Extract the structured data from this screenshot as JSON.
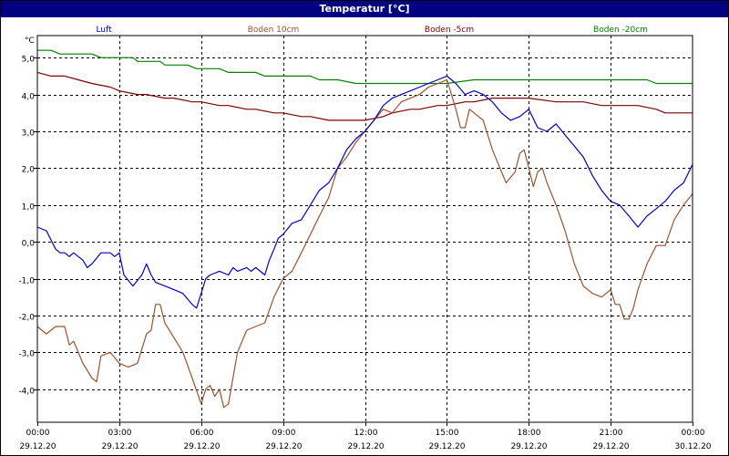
{
  "chart_data": {
    "type": "line",
    "title": "Temperatur [°C]",
    "ylabel": "°C",
    "xlabel": "",
    "ylim": [
      -4.9,
      5.6
    ],
    "grid": true,
    "legend_placement": "top",
    "yticks": [
      "5,0",
      "4,0",
      "3,0",
      "2,0",
      "1,0",
      "0,0",
      "-1,0",
      "-2,0",
      "-3,0",
      "-4,0"
    ],
    "ytick_values": [
      5,
      4,
      3,
      2,
      1,
      0,
      -1,
      -2,
      -3,
      -4
    ],
    "xtick_times": [
      "00:00",
      "03:00",
      "06:00",
      "09:00",
      "12:00",
      "15:00",
      "18:00",
      "21:00",
      "00:00"
    ],
    "xtick_dates": [
      "29.12.20",
      "29.12.20",
      "29.12.20",
      "29.12.20",
      "29.12.20",
      "29.12.20",
      "29.12.20",
      "29.12.20",
      "30.12.20"
    ],
    "xtick_hours": [
      0,
      3,
      6,
      9,
      12,
      15,
      18,
      21,
      24
    ],
    "series": [
      {
        "name": "Luft",
        "color": "#0000cc",
        "points": [
          [
            0,
            0.4
          ],
          [
            0.33,
            0.3
          ],
          [
            0.67,
            -0.2
          ],
          [
            0.83,
            -0.3
          ],
          [
            1.0,
            -0.3
          ],
          [
            1.17,
            -0.4
          ],
          [
            1.33,
            -0.3
          ],
          [
            1.5,
            -0.4
          ],
          [
            1.67,
            -0.5
          ],
          [
            1.83,
            -0.7
          ],
          [
            2.0,
            -0.6
          ],
          [
            2.33,
            -0.3
          ],
          [
            2.67,
            -0.3
          ],
          [
            2.83,
            -0.4
          ],
          [
            3.0,
            -0.3
          ],
          [
            3.17,
            -0.9
          ],
          [
            3.5,
            -1.2
          ],
          [
            3.83,
            -0.9
          ],
          [
            4.0,
            -0.6
          ],
          [
            4.17,
            -0.9
          ],
          [
            4.33,
            -1.1
          ],
          [
            4.67,
            -1.2
          ],
          [
            5.0,
            -1.3
          ],
          [
            5.33,
            -1.4
          ],
          [
            5.67,
            -1.7
          ],
          [
            5.83,
            -1.8
          ],
          [
            6.0,
            -1.4
          ],
          [
            6.17,
            -1.0
          ],
          [
            6.33,
            -0.9
          ],
          [
            6.67,
            -0.8
          ],
          [
            7.0,
            -0.9
          ],
          [
            7.17,
            -0.7
          ],
          [
            7.33,
            -0.8
          ],
          [
            7.67,
            -0.7
          ],
          [
            7.83,
            -0.8
          ],
          [
            8.0,
            -0.7
          ],
          [
            8.33,
            -0.9
          ],
          [
            8.5,
            -0.5
          ],
          [
            8.67,
            -0.2
          ],
          [
            8.83,
            0.1
          ],
          [
            9.0,
            0.2
          ],
          [
            9.33,
            0.5
          ],
          [
            9.67,
            0.6
          ],
          [
            10.0,
            1.0
          ],
          [
            10.33,
            1.4
          ],
          [
            10.67,
            1.6
          ],
          [
            11.0,
            2.0
          ],
          [
            11.33,
            2.5
          ],
          [
            11.67,
            2.8
          ],
          [
            12.0,
            3.0
          ],
          [
            12.33,
            3.3
          ],
          [
            12.67,
            3.7
          ],
          [
            13.0,
            3.9
          ],
          [
            13.33,
            4.0
          ],
          [
            13.67,
            4.1
          ],
          [
            14.0,
            4.2
          ],
          [
            14.33,
            4.3
          ],
          [
            14.67,
            4.4
          ],
          [
            15.0,
            4.5
          ],
          [
            15.33,
            4.3
          ],
          [
            15.67,
            4.0
          ],
          [
            16.0,
            4.1
          ],
          [
            16.33,
            4.0
          ],
          [
            16.67,
            3.8
          ],
          [
            17.0,
            3.5
          ],
          [
            17.33,
            3.3
          ],
          [
            17.67,
            3.4
          ],
          [
            18.0,
            3.6
          ],
          [
            18.33,
            3.1
          ],
          [
            18.67,
            3.0
          ],
          [
            19.0,
            3.2
          ],
          [
            19.33,
            2.9
          ],
          [
            19.67,
            2.6
          ],
          [
            20.0,
            2.3
          ],
          [
            20.33,
            1.8
          ],
          [
            20.67,
            1.4
          ],
          [
            21.0,
            1.1
          ],
          [
            21.33,
            1.0
          ],
          [
            21.67,
            0.7
          ],
          [
            22.0,
            0.4
          ],
          [
            22.33,
            0.7
          ],
          [
            22.67,
            0.9
          ],
          [
            23.0,
            1.1
          ],
          [
            23.33,
            1.4
          ],
          [
            23.67,
            1.6
          ],
          [
            24.0,
            2.1
          ]
        ]
      },
      {
        "name": "Boden 10cm",
        "color": "#a0522d",
        "points": [
          [
            0,
            -2.3
          ],
          [
            0.33,
            -2.5
          ],
          [
            0.67,
            -2.3
          ],
          [
            1.0,
            -2.3
          ],
          [
            1.17,
            -2.8
          ],
          [
            1.33,
            -2.7
          ],
          [
            1.67,
            -3.3
          ],
          [
            2.0,
            -3.7
          ],
          [
            2.17,
            -3.8
          ],
          [
            2.33,
            -3.1
          ],
          [
            2.67,
            -3.0
          ],
          [
            3.0,
            -3.3
          ],
          [
            3.33,
            -3.4
          ],
          [
            3.67,
            -3.3
          ],
          [
            4.0,
            -2.5
          ],
          [
            4.17,
            -2.4
          ],
          [
            4.33,
            -1.7
          ],
          [
            4.5,
            -1.7
          ],
          [
            4.67,
            -2.2
          ],
          [
            5.0,
            -2.6
          ],
          [
            5.33,
            -3.0
          ],
          [
            5.67,
            -3.7
          ],
          [
            6.0,
            -4.4
          ],
          [
            6.17,
            -4.0
          ],
          [
            6.33,
            -3.9
          ],
          [
            6.5,
            -4.2
          ],
          [
            6.67,
            -4.0
          ],
          [
            6.83,
            -4.5
          ],
          [
            7.0,
            -4.4
          ],
          [
            7.33,
            -3.0
          ],
          [
            7.67,
            -2.4
          ],
          [
            8.0,
            -2.3
          ],
          [
            8.33,
            -2.2
          ],
          [
            8.67,
            -1.5
          ],
          [
            9.0,
            -1.0
          ],
          [
            9.33,
            -0.8
          ],
          [
            9.67,
            -0.3
          ],
          [
            10.0,
            0.2
          ],
          [
            10.33,
            0.7
          ],
          [
            10.67,
            1.2
          ],
          [
            11.0,
            2.0
          ],
          [
            11.33,
            2.3
          ],
          [
            11.67,
            2.7
          ],
          [
            12.0,
            3.0
          ],
          [
            12.33,
            3.3
          ],
          [
            12.67,
            3.6
          ],
          [
            13.0,
            3.5
          ],
          [
            13.33,
            3.8
          ],
          [
            13.67,
            3.9
          ],
          [
            14.0,
            4.0
          ],
          [
            14.33,
            4.2
          ],
          [
            14.67,
            4.3
          ],
          [
            15.0,
            4.4
          ],
          [
            15.17,
            4.0
          ],
          [
            15.33,
            3.6
          ],
          [
            15.5,
            3.1
          ],
          [
            15.67,
            3.1
          ],
          [
            15.83,
            3.6
          ],
          [
            16.0,
            3.5
          ],
          [
            16.33,
            3.3
          ],
          [
            16.67,
            2.5
          ],
          [
            17.0,
            1.9
          ],
          [
            17.17,
            1.6
          ],
          [
            17.5,
            1.9
          ],
          [
            17.67,
            2.4
          ],
          [
            17.83,
            2.5
          ],
          [
            18.0,
            2.0
          ],
          [
            18.17,
            1.5
          ],
          [
            18.33,
            1.9
          ],
          [
            18.5,
            2.0
          ],
          [
            18.67,
            1.6
          ],
          [
            19.0,
            1.0
          ],
          [
            19.33,
            0.3
          ],
          [
            19.67,
            -0.6
          ],
          [
            20.0,
            -1.2
          ],
          [
            20.33,
            -1.4
          ],
          [
            20.67,
            -1.5
          ],
          [
            21.0,
            -1.3
          ],
          [
            21.17,
            -1.7
          ],
          [
            21.33,
            -1.7
          ],
          [
            21.5,
            -2.1
          ],
          [
            21.67,
            -2.1
          ],
          [
            21.83,
            -1.8
          ],
          [
            22.0,
            -1.3
          ],
          [
            22.33,
            -0.6
          ],
          [
            22.67,
            -0.1
          ],
          [
            23.0,
            -0.1
          ],
          [
            23.33,
            0.6
          ],
          [
            23.67,
            1.0
          ],
          [
            24.0,
            1.3
          ]
        ]
      },
      {
        "name": "Boden -5cm",
        "color": "#800000",
        "points": [
          [
            0,
            4.6
          ],
          [
            0.5,
            4.5
          ],
          [
            1.0,
            4.5
          ],
          [
            1.5,
            4.4
          ],
          [
            2.0,
            4.3
          ],
          [
            2.67,
            4.2
          ],
          [
            3.0,
            4.1
          ],
          [
            3.67,
            4.0
          ],
          [
            4.0,
            4.0
          ],
          [
            4.67,
            3.9
          ],
          [
            5.0,
            3.9
          ],
          [
            5.67,
            3.8
          ],
          [
            6.0,
            3.8
          ],
          [
            6.67,
            3.7
          ],
          [
            7.0,
            3.7
          ],
          [
            7.67,
            3.6
          ],
          [
            8.0,
            3.6
          ],
          [
            8.67,
            3.5
          ],
          [
            9.0,
            3.5
          ],
          [
            9.67,
            3.4
          ],
          [
            10.0,
            3.4
          ],
          [
            10.67,
            3.3
          ],
          [
            11.0,
            3.3
          ],
          [
            11.67,
            3.3
          ],
          [
            12.0,
            3.3
          ],
          [
            12.67,
            3.4
          ],
          [
            13.0,
            3.5
          ],
          [
            13.67,
            3.6
          ],
          [
            14.0,
            3.6
          ],
          [
            14.67,
            3.7
          ],
          [
            15.0,
            3.7
          ],
          [
            15.67,
            3.8
          ],
          [
            16.0,
            3.8
          ],
          [
            16.67,
            3.9
          ],
          [
            17.0,
            3.9
          ],
          [
            18.0,
            3.9
          ],
          [
            19.0,
            3.8
          ],
          [
            20.0,
            3.8
          ],
          [
            20.67,
            3.7
          ],
          [
            21.0,
            3.7
          ],
          [
            22.0,
            3.7
          ],
          [
            22.67,
            3.6
          ],
          [
            23.0,
            3.5
          ],
          [
            24.0,
            3.5
          ]
        ]
      },
      {
        "name": "Boden -20cm",
        "color": "#008000",
        "points": [
          [
            0,
            5.2
          ],
          [
            0.5,
            5.2
          ],
          [
            0.83,
            5.1
          ],
          [
            1.5,
            5.1
          ],
          [
            2.0,
            5.1
          ],
          [
            2.33,
            5.0
          ],
          [
            3.0,
            5.0
          ],
          [
            3.5,
            5.0
          ],
          [
            3.67,
            4.9
          ],
          [
            4.5,
            4.9
          ],
          [
            4.67,
            4.8
          ],
          [
            5.5,
            4.8
          ],
          [
            5.83,
            4.7
          ],
          [
            6.67,
            4.7
          ],
          [
            7.0,
            4.6
          ],
          [
            8.0,
            4.6
          ],
          [
            8.33,
            4.5
          ],
          [
            9.0,
            4.5
          ],
          [
            10.0,
            4.5
          ],
          [
            10.33,
            4.4
          ],
          [
            11.0,
            4.4
          ],
          [
            11.67,
            4.3
          ],
          [
            13.0,
            4.3
          ],
          [
            14.0,
            4.3
          ],
          [
            15.0,
            4.3
          ],
          [
            16.0,
            4.4
          ],
          [
            17.0,
            4.4
          ],
          [
            18.0,
            4.4
          ],
          [
            20.0,
            4.4
          ],
          [
            21.0,
            4.4
          ],
          [
            22.33,
            4.4
          ],
          [
            22.67,
            4.3
          ],
          [
            23.0,
            4.3
          ],
          [
            24.0,
            4.3
          ]
        ]
      }
    ]
  }
}
